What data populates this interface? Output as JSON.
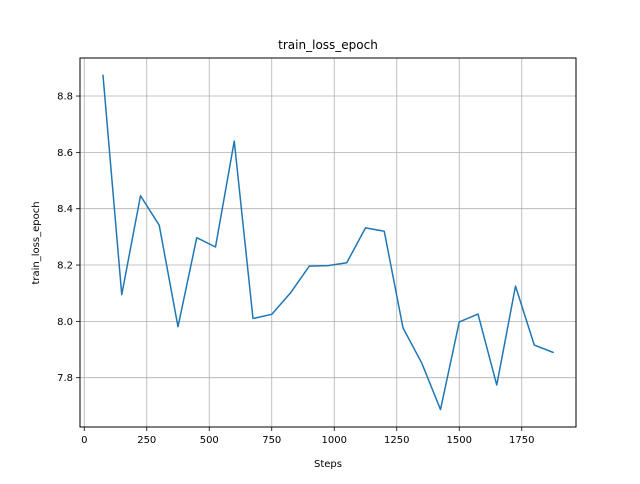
{
  "chart_data": {
    "type": "line",
    "title": "train_loss_epoch",
    "xlabel": "Steps",
    "ylabel": "train_loss_epoch",
    "xlim": [
      -17,
      1967
    ],
    "ylim": [
      7.625,
      8.935
    ],
    "grid": true,
    "x_ticks": [
      0,
      250,
      500,
      750,
      1000,
      1250,
      1500,
      1750
    ],
    "x_tick_labels": [
      "0",
      "250",
      "500",
      "750",
      "1000",
      "1250",
      "1500",
      "1750"
    ],
    "y_ticks": [
      7.8,
      8.0,
      8.2,
      8.4,
      8.6,
      8.8
    ],
    "y_tick_labels": [
      "7.8",
      "8.0",
      "8.2",
      "8.4",
      "8.6",
      "8.8"
    ],
    "series": [
      {
        "color": "#1f77b4",
        "x": [
          75,
          150,
          225,
          300,
          375,
          450,
          525,
          600,
          675,
          750,
          825,
          900,
          975,
          1050,
          1125,
          1200,
          1275,
          1350,
          1425,
          1500,
          1575,
          1650,
          1725,
          1800,
          1875
        ],
        "y": [
          8.873,
          8.095,
          8.446,
          8.341,
          7.981,
          8.297,
          8.264,
          8.64,
          8.01,
          8.025,
          8.101,
          8.196,
          8.198,
          8.208,
          8.332,
          8.32,
          7.977,
          7.852,
          7.687,
          7.998,
          8.026,
          7.774,
          8.125,
          7.916,
          7.89
        ]
      }
    ]
  }
}
